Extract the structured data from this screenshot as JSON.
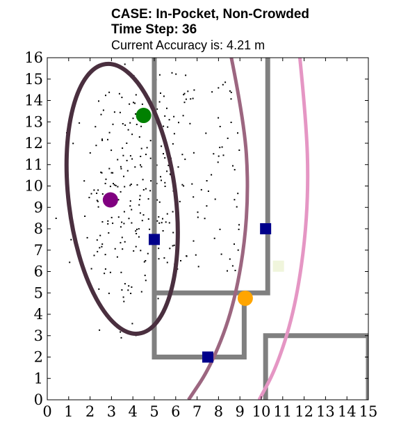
{
  "title_lines": {
    "case": "CASE: In-Pocket, Non-Crowded",
    "time_step": "Time Step: 36",
    "accuracy": "Current Accuracy is: 4.21 m"
  },
  "chart_data": {
    "type": "scatter",
    "xlim": [
      0,
      15
    ],
    "ylim": [
      0,
      16
    ],
    "x_ticks": [
      "0",
      "1",
      "2",
      "3",
      "4",
      "5",
      "6",
      "7",
      "8",
      "9",
      "10",
      "11",
      "12",
      "13",
      "14",
      "15"
    ],
    "y_ticks": [
      "0",
      "1",
      "2",
      "3",
      "4",
      "5",
      "6",
      "7",
      "8",
      "9",
      "10",
      "11",
      "12",
      "13",
      "14",
      "15",
      "16"
    ],
    "grid": false,
    "walls": [
      {
        "name": "main-corridor",
        "color": "#808080",
        "points": [
          [
            5,
            16
          ],
          [
            5,
            5
          ],
          [
            10.3,
            5
          ],
          [
            10.3,
            16
          ]
        ]
      },
      {
        "name": "lower-room",
        "color": "#808080",
        "points": [
          [
            5,
            5
          ],
          [
            5,
            2
          ],
          [
            9.2,
            2
          ],
          [
            9.2,
            5
          ]
        ]
      },
      {
        "name": "right-room",
        "color": "#808080",
        "points": [
          [
            10.2,
            0
          ],
          [
            10.2,
            3
          ],
          [
            15,
            3
          ],
          [
            15,
            0
          ]
        ]
      }
    ],
    "beacons": {
      "color": "#00008b",
      "points": [
        [
          5,
          7.5
        ],
        [
          10.2,
          8
        ],
        [
          7.5,
          2
        ]
      ]
    },
    "markers": [
      {
        "name": "green-marker",
        "x": 4.5,
        "y": 13.3,
        "color": "#008000"
      },
      {
        "name": "purple-marker",
        "x": 2.95,
        "y": 9.35,
        "color": "#800080"
      },
      {
        "name": "orange-marker",
        "x": 9.25,
        "y": 4.75,
        "color": "#ffa500"
      }
    ],
    "faint_square": {
      "x": 10.8,
      "y": 6.25,
      "color": "#f0f5dc"
    },
    "ellipse": {
      "cx": 3.5,
      "cy": 9.4,
      "rx": 2.5,
      "ry": 6.35,
      "angle_deg": -7,
      "color": "#4a2f3f"
    },
    "arcs": [
      {
        "name": "arc-mauve",
        "color": "#9c6680",
        "points": [
          [
            8.6,
            16
          ],
          [
            9.2,
            13
          ],
          [
            9.4,
            10
          ],
          [
            9.2,
            7
          ],
          [
            8.6,
            4
          ],
          [
            7.6,
            1.5
          ],
          [
            6.6,
            0
          ]
        ]
      },
      {
        "name": "arc-pink",
        "color": "#e596c4",
        "points": [
          [
            11.8,
            16
          ],
          [
            12.1,
            13
          ],
          [
            12.2,
            10
          ],
          [
            12.0,
            7
          ],
          [
            11.5,
            4
          ],
          [
            10.7,
            1.5
          ],
          [
            9.9,
            0
          ]
        ]
      }
    ],
    "particles": {
      "count": 320,
      "color": "#000000",
      "seed": 36
    }
  }
}
